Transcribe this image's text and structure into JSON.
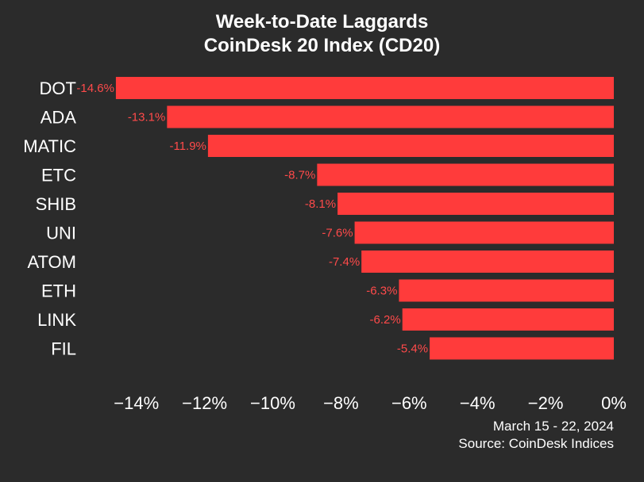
{
  "colors": {
    "background": "#2b2b2b",
    "bar": "#ff3b3b",
    "value_label": "#ff4a4a",
    "text": "#ffffff"
  },
  "chart_data": {
    "type": "bar",
    "orientation": "horizontal",
    "title": "Week-to-Date Laggards",
    "subtitle": "CoinDesk 20 Index (CD20)",
    "categories": [
      "DOT",
      "ADA",
      "MATIC",
      "ETC",
      "SHIB",
      "UNI",
      "ATOM",
      "ETH",
      "LINK",
      "FIL"
    ],
    "values": [
      -14.6,
      -13.1,
      -11.9,
      -8.7,
      -8.1,
      -7.6,
      -7.4,
      -6.3,
      -6.2,
      -5.4
    ],
    "value_labels": [
      "-14.6%",
      "-13.1%",
      "-11.9%",
      "-8.7%",
      "-8.1%",
      "-7.6%",
      "-7.4%",
      "-6.3%",
      "-6.2%",
      "-5.4%"
    ],
    "xlim": [
      -14.6,
      0
    ],
    "x_ticks": [
      -14,
      -12,
      -10,
      -8,
      -6,
      -4,
      -2,
      0
    ],
    "x_tick_labels": [
      "−14%",
      "−12%",
      "−10%",
      "−8%",
      "−6%",
      "−4%",
      "−2%",
      "0%"
    ],
    "xlabel": "",
    "ylabel": "",
    "grid": false,
    "legend": "none"
  },
  "footer": {
    "date_range": "March 15 - 22, 2024",
    "source": "Source: CoinDesk Indices"
  }
}
